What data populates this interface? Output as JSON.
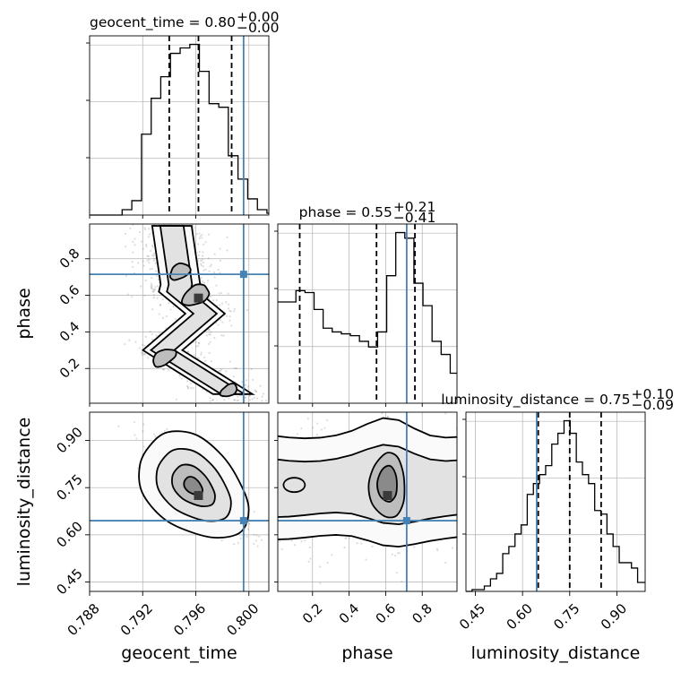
{
  "chart_data": {
    "type": "corner",
    "parameters": [
      "geocent_time",
      "phase",
      "luminosity_distance"
    ],
    "axis_labels": {
      "geocent_time": "geocent_time",
      "phase": "phase",
      "luminosity_distance": "luminosity_distance"
    },
    "titles": [
      {
        "param": "geocent_time",
        "text": "geocent_time = 0.80",
        "plus": "+0.00",
        "minus": "−0.00"
      },
      {
        "param": "phase",
        "text": "phase = 0.55",
        "plus": "+0.21",
        "minus": "−0.41"
      },
      {
        "param": "luminosity_distance",
        "text": "luminosity_distance = 0.75",
        "plus": "+0.10",
        "minus": "−0.09"
      }
    ],
    "ranges": {
      "geocent_time": [
        0.788,
        0.8015
      ],
      "phase": [
        0.01,
        0.99
      ],
      "luminosity_distance": [
        0.42,
        0.99
      ]
    },
    "ticks": {
      "geocent_time": [
        0.788,
        0.792,
        0.796,
        0.8
      ],
      "phase": [
        0.2,
        0.4,
        0.6,
        0.8
      ],
      "luminosity_distance": [
        0.45,
        0.6,
        0.75,
        0.9
      ]
    },
    "tick_labels": {
      "geocent_time": [
        "0.788",
        "0.792",
        "0.796",
        "0.800"
      ],
      "phase": [
        "0.2",
        "0.4",
        "0.6",
        "0.8"
      ],
      "luminosity_distance": [
        "0.45",
        "0.60",
        "0.75",
        "0.90"
      ]
    },
    "truths": {
      "geocent_time": 0.7996,
      "phase": 0.715,
      "luminosity_distance": 0.645
    },
    "quantiles": {
      "geocent_time": [
        0.794,
        0.7962,
        0.7987
      ],
      "phase": [
        0.13,
        0.55,
        0.76
      ],
      "luminosity_distance": [
        0.65,
        0.75,
        0.85
      ]
    },
    "histograms": {
      "geocent_time": {
        "edges": [
          0.788,
          0.79045,
          0.79118,
          0.79191,
          0.79264,
          0.79336,
          0.79409,
          0.79482,
          0.79555,
          0.79627,
          0.797,
          0.79773,
          0.79845,
          0.79918,
          0.79991,
          0.80064,
          0.80136,
          0.8015
        ],
        "values": [
          0,
          3,
          8,
          45,
          65,
          77,
          90,
          93,
          95,
          80,
          62,
          60,
          33,
          20,
          9,
          3,
          1
        ]
      },
      "phase": {
        "edges": [
          0.01,
          0.0596,
          0.1092,
          0.1589,
          0.2085,
          0.2581,
          0.3078,
          0.3574,
          0.407,
          0.4567,
          0.5063,
          0.5559,
          0.6056,
          0.6552,
          0.7048,
          0.7545,
          0.8041,
          0.8537,
          0.9034,
          0.953,
          0.99
        ],
        "values": [
          54,
          54,
          60,
          59,
          50,
          40,
          38,
          37,
          36,
          33,
          30,
          38,
          68,
          91,
          88,
          64,
          52,
          33,
          26,
          16
        ]
      },
      "luminosity_distance": {
        "edges": [
          0.42,
          0.4395,
          0.459,
          0.4785,
          0.498,
          0.5175,
          0.537,
          0.5565,
          0.576,
          0.5955,
          0.615,
          0.6345,
          0.654,
          0.6735,
          0.693,
          0.7125,
          0.732,
          0.7515,
          0.771,
          0.7905,
          0.81,
          0.8295,
          0.849,
          0.8685,
          0.888,
          0.9075,
          0.927,
          0.9465,
          0.966,
          0.99
        ],
        "values": [
          0,
          1,
          1,
          3,
          7,
          10,
          21,
          25,
          32,
          37,
          54,
          60,
          65,
          70,
          82,
          88,
          95,
          88,
          72,
          65,
          60,
          45,
          43,
          32,
          25,
          16,
          16,
          13,
          5
        ]
      }
    },
    "truth_color": "#4682b4",
    "density_colors": [
      "#fafafa",
      "#e2e2e2",
      "#bdbdbd",
      "#8a8a8a",
      "#3a3a3a"
    ],
    "grid": true
  }
}
